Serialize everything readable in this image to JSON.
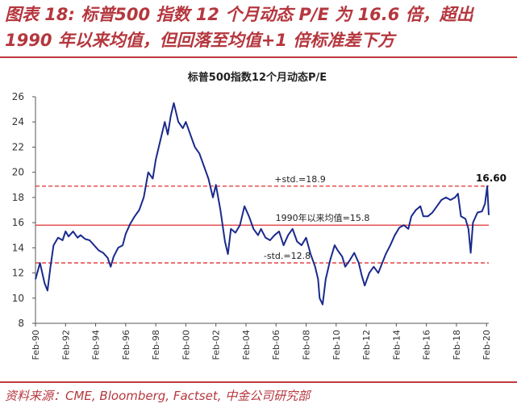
{
  "figure": {
    "title_line1": "图表 18: 标普500 指数 12 个月动态 P/E 为 16.6 倍，超出",
    "title_line2": "1990 年以来均值，但回落至均值+1 倍标准差下方",
    "source": "资料来源：CME, Bloomberg, Factset, 中金公司研究部"
  },
  "colors": {
    "accent": "#B5373E",
    "line": "#1A2A8C",
    "reference": "#E03030"
  },
  "chart_data": {
    "type": "line",
    "title": "标普500指数12个月动态P/E",
    "xlabel": "",
    "ylabel": "",
    "x_tick_labels": [
      "Feb-90",
      "Feb-92",
      "Feb-94",
      "Feb-96",
      "Feb-98",
      "Feb-00",
      "Feb-02",
      "Feb-04",
      "Feb-06",
      "Feb-08",
      "Feb-10",
      "Feb-12",
      "Feb-14",
      "Feb-16",
      "Feb-18",
      "Feb-20"
    ],
    "y_ticks": [
      8,
      10,
      12,
      14,
      16,
      18,
      20,
      22,
      24,
      26
    ],
    "ylim": [
      8,
      26
    ],
    "xlim": [
      1990.0,
      2020.15
    ],
    "grid": false,
    "series": [
      {
        "name": "",
        "x": [
          1990.0,
          1990.3,
          1990.6,
          1990.8,
          1991.0,
          1991.2,
          1991.5,
          1991.8,
          1992.0,
          1992.2,
          1992.5,
          1992.8,
          1993.0,
          1993.3,
          1993.6,
          1993.9,
          1994.2,
          1994.5,
          1994.8,
          1995.0,
          1995.2,
          1995.5,
          1995.8,
          1996.0,
          1996.3,
          1996.6,
          1996.9,
          1997.2,
          1997.5,
          1997.8,
          1998.0,
          1998.3,
          1998.6,
          1998.8,
          1999.0,
          1999.2,
          1999.5,
          1999.8,
          2000.0,
          2000.3,
          2000.6,
          2000.9,
          2001.2,
          2001.5,
          2001.8,
          2002.0,
          2002.3,
          2002.6,
          2002.8,
          2003.0,
          2003.3,
          2003.6,
          2003.9,
          2004.2,
          2004.5,
          2004.8,
          2005.0,
          2005.3,
          2005.6,
          2005.9,
          2006.2,
          2006.5,
          2006.8,
          2007.1,
          2007.4,
          2007.7,
          2008.0,
          2008.3,
          2008.6,
          2008.8,
          2008.9,
          2009.1,
          2009.3,
          2009.6,
          2009.9,
          2010.1,
          2010.4,
          2010.6,
          2010.9,
          2011.2,
          2011.5,
          2011.7,
          2011.9,
          2012.2,
          2012.5,
          2012.8,
          2013.0,
          2013.3,
          2013.6,
          2013.9,
          2014.2,
          2014.5,
          2014.8,
          2015.0,
          2015.3,
          2015.6,
          2015.8,
          2016.1,
          2016.4,
          2016.7,
          2017.0,
          2017.3,
          2017.6,
          2017.9,
          2018.1,
          2018.3,
          2018.6,
          2018.8,
          2018.95,
          2019.1,
          2019.4,
          2019.7,
          2019.9,
          2020.05,
          2020.15
        ],
        "y": [
          11.5,
          12.8,
          11.2,
          10.6,
          12.5,
          14.2,
          14.8,
          14.6,
          15.3,
          14.9,
          15.3,
          14.8,
          15.0,
          14.7,
          14.6,
          14.2,
          13.8,
          13.6,
          13.2,
          12.5,
          13.3,
          14.0,
          14.2,
          15.1,
          15.9,
          16.5,
          17.0,
          18.0,
          20.0,
          19.5,
          21.0,
          22.5,
          24.0,
          23.0,
          24.5,
          25.5,
          24.0,
          23.5,
          24.0,
          23.0,
          22.0,
          21.5,
          20.5,
          19.5,
          18.0,
          19.0,
          17.0,
          14.5,
          13.5,
          15.5,
          15.2,
          15.8,
          17.3,
          16.5,
          15.5,
          15.0,
          15.5,
          14.8,
          14.6,
          15.0,
          15.3,
          14.2,
          15.0,
          15.5,
          14.5,
          14.2,
          14.8,
          13.5,
          12.5,
          11.5,
          10.0,
          9.5,
          11.5,
          13.0,
          14.2,
          13.8,
          13.3,
          12.5,
          13.0,
          13.6,
          12.8,
          11.8,
          11.0,
          12.0,
          12.5,
          12.0,
          12.6,
          13.5,
          14.2,
          15.0,
          15.6,
          15.8,
          15.5,
          16.5,
          17.0,
          17.3,
          16.5,
          16.5,
          16.8,
          17.3,
          17.8,
          18.0,
          17.8,
          18.0,
          18.3,
          16.5,
          16.3,
          15.5,
          13.6,
          16.0,
          16.8,
          16.9,
          17.5,
          18.9,
          16.6
        ]
      }
    ],
    "reference_lines": [
      {
        "label": "+std.=18.9",
        "value": 18.9,
        "style": "dashed"
      },
      {
        "label": "1990年以来均值=15.8",
        "value": 15.8,
        "style": "solid"
      },
      {
        "label": "-std.=12.8",
        "value": 12.8,
        "style": "dashed"
      }
    ],
    "annotations": [
      {
        "text": "16.60",
        "x": 2020.15,
        "y": 16.6
      }
    ]
  }
}
